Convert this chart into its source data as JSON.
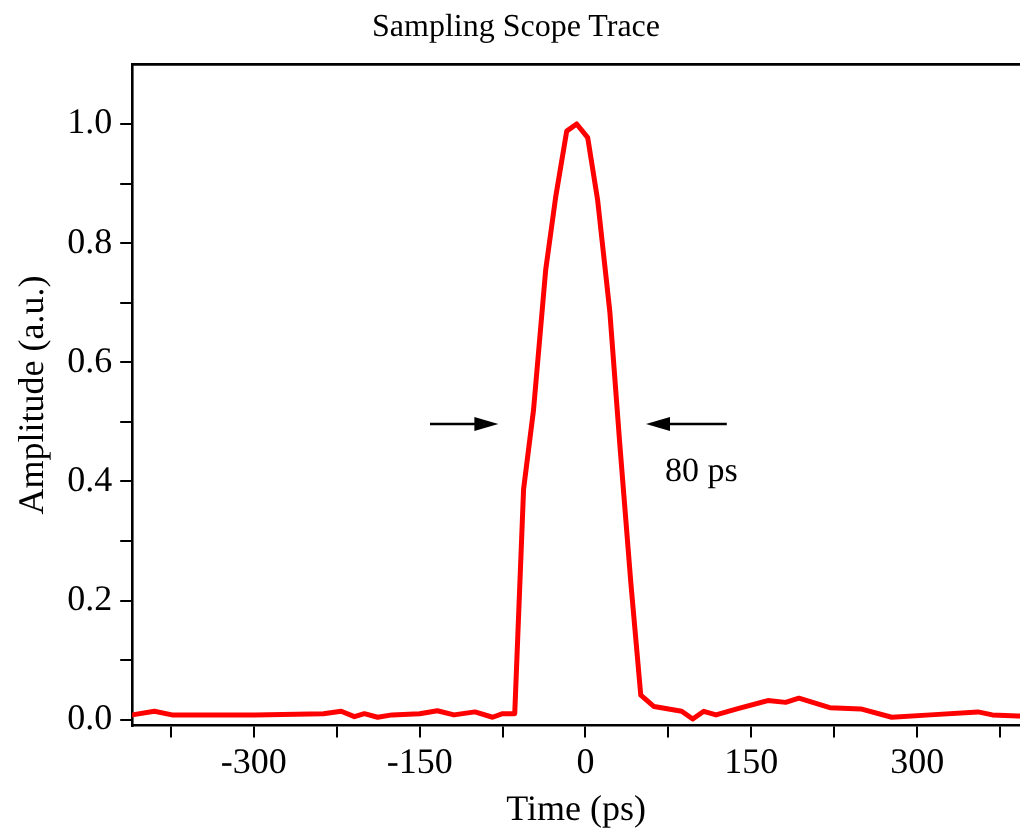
{
  "chart_data": {
    "type": "line",
    "title": "Sampling Scope Trace",
    "xlabel": "Time (ps)",
    "ylabel": "Amplitude (a.u.)",
    "x": [
      -410,
      -390,
      -374,
      -299,
      -237,
      -221,
      -209,
      -200,
      -188,
      -175,
      -150,
      -134,
      -119,
      -100,
      -84,
      -75,
      -64,
      -56,
      -47,
      -36,
      -27,
      -17,
      -8,
      2,
      11,
      22,
      31,
      41,
      50,
      62,
      87,
      97,
      107,
      118,
      137,
      165,
      181,
      193,
      221,
      249,
      277,
      312,
      355,
      368,
      393
    ],
    "series": [
      {
        "color": "#ff0000",
        "values": [
          0.008,
          0.014,
          0.008,
          0.008,
          0.01,
          0.014,
          0.005,
          0.01,
          0.004,
          0.008,
          0.01,
          0.015,
          0.008,
          0.013,
          0.004,
          0.01,
          0.01,
          0.387,
          0.52,
          0.755,
          0.877,
          0.988,
          1.0,
          0.977,
          0.872,
          0.685,
          0.463,
          0.23,
          0.041,
          0.022,
          0.014,
          0.001,
          0.014,
          0.008,
          0.018,
          0.032,
          0.029,
          0.036,
          0.02,
          0.018,
          0.004,
          0.008,
          0.013,
          0.008,
          0.006
        ]
      }
    ],
    "xlim": [
      -410,
      393
    ],
    "ylim": [
      -0.01,
      1.1
    ],
    "xticks": [
      {
        "value": -375,
        "label": null
      },
      -300,
      {
        "value": -225,
        "label": null
      },
      -150,
      {
        "value": -75,
        "label": null
      },
      0,
      {
        "value": 75,
        "label": null
      },
      150,
      {
        "value": 225,
        "label": null
      },
      300,
      {
        "value": 375,
        "label": null
      }
    ],
    "yticks": [
      {
        "value": 0,
        "label": "0.0"
      },
      {
        "value": 0.1,
        "label": null
      },
      {
        "value": 0.2,
        "label": "0.2"
      },
      {
        "value": 0.3,
        "label": null
      },
      {
        "value": 0.4,
        "label": "0.4"
      },
      {
        "value": 0.5,
        "label": null
      },
      {
        "value": 0.6,
        "label": "0.6"
      },
      {
        "value": 0.7,
        "label": null
      },
      {
        "value": 0.8,
        "label": "0.8"
      },
      {
        "value": 0.9,
        "label": null
      },
      {
        "value": 1,
        "label": "1.0"
      }
    ],
    "annotations": [
      "80 ps"
    ],
    "marker": "none",
    "line_style": "solid",
    "grid": false,
    "legend": false
  }
}
